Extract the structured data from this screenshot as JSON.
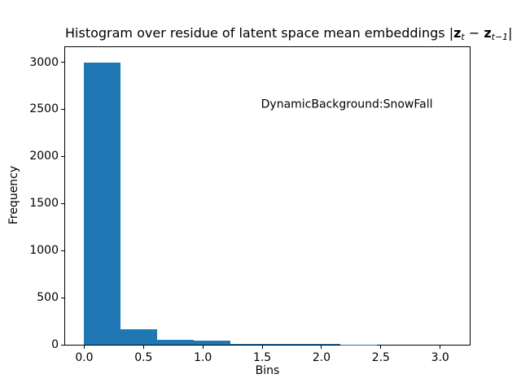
{
  "title_parts": {
    "prefix": "Histogram over residue of latent space mean embeddings |",
    "z1": "z",
    "sub1": "t",
    "minus": " − ",
    "z2": "z",
    "sub2": "t−1",
    "suffix": "|"
  },
  "chart_data": {
    "type": "bar",
    "title": "Histogram over residue of latent space mean embeddings |z_t − z_{t−1}|",
    "xlabel": "Bins",
    "ylabel": "Frequency",
    "bin_edges": [
      0.0,
      0.308,
      0.617,
      0.925,
      1.233,
      1.542,
      1.85,
      2.158,
      2.467
    ],
    "values": [
      3000,
      160,
      55,
      40,
      12,
      8,
      5,
      3
    ],
    "xlim": [
      -0.161,
      3.249
    ],
    "ylim": [
      0,
      3160
    ],
    "xticks": {
      "values": [
        0.0,
        0.5,
        1.0,
        1.5,
        2.0,
        2.5,
        3.0
      ],
      "labels": [
        "0.0",
        "0.5",
        "1.0",
        "1.5",
        "2.0",
        "2.5",
        "3.0"
      ]
    },
    "yticks": {
      "values": [
        0,
        500,
        1000,
        1500,
        2000,
        2500,
        3000
      ],
      "labels": [
        "0",
        "500",
        "1000",
        "1500",
        "2000",
        "2500",
        "3000"
      ]
    },
    "bar_color": "#1f77b4",
    "annotation": {
      "text": "DynamicBackground:SnowFall",
      "x": 1.49,
      "y": 2550
    },
    "grid": false,
    "legend": null
  }
}
